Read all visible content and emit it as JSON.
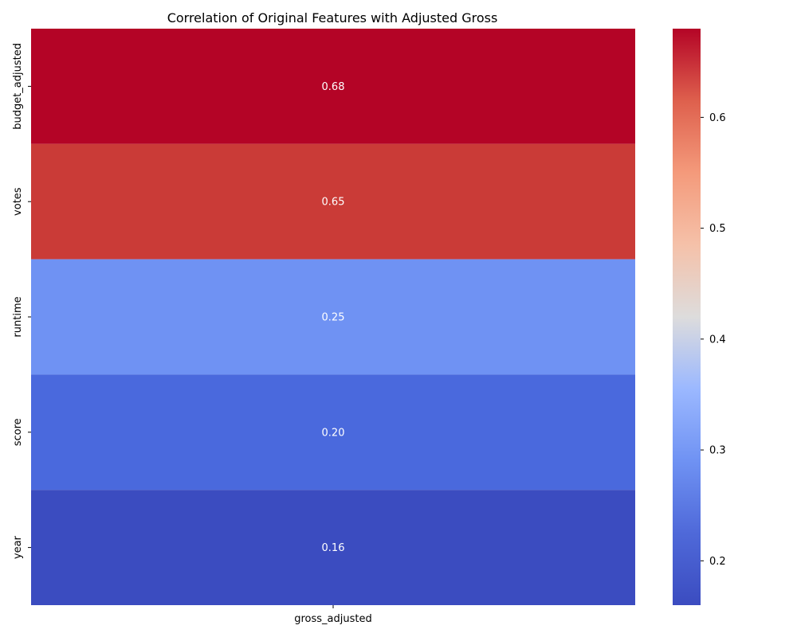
{
  "chart_data": {
    "type": "heatmap",
    "title": "Correlation of Original Features with Adjusted Gross",
    "rows": [
      "budget_adjusted",
      "votes",
      "runtime",
      "score",
      "year"
    ],
    "columns": [
      "gross_adjusted"
    ],
    "values": [
      [
        0.68
      ],
      [
        0.65
      ],
      [
        0.25
      ],
      [
        0.2
      ],
      [
        0.16
      ]
    ],
    "value_labels": [
      "0.68",
      "0.65",
      "0.25",
      "0.20",
      "0.16"
    ],
    "colormap": "coolwarm",
    "vmin": 0.16,
    "vmax": 0.68,
    "colorbar_ticks": [
      0.2,
      0.3,
      0.4,
      0.5,
      0.6
    ],
    "colorbar_tick_labels": [
      "0.2",
      "0.3",
      "0.4",
      "0.5",
      "0.6"
    ],
    "colors": [
      "#b40426",
      "#ca3b37",
      "#6f92f3",
      "#4a69dd",
      "#3b4cc0"
    ]
  }
}
